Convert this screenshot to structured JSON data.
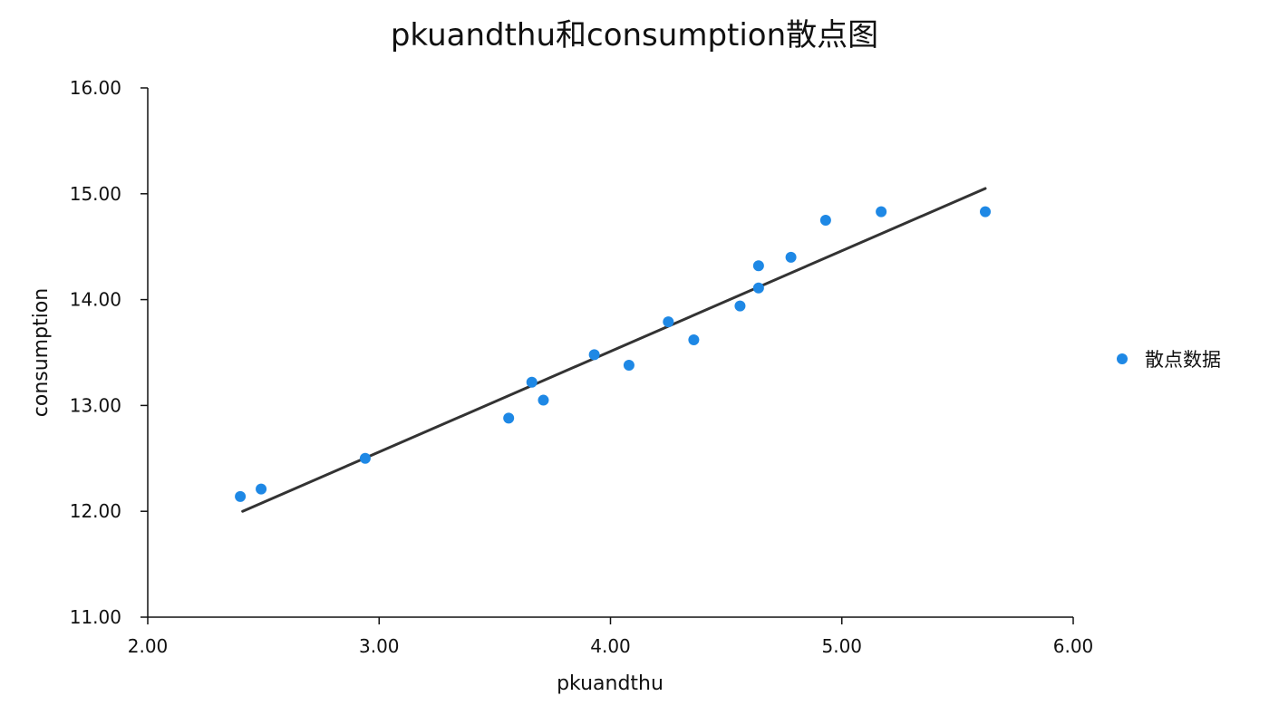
{
  "chart_data": {
    "type": "scatter",
    "title": "pkuandthu和consumption散点图",
    "xlabel": "pkuandthu",
    "ylabel": "consumption",
    "xlim": [
      2,
      6
    ],
    "ylim": [
      11,
      16
    ],
    "x_ticks": [
      "2.00",
      "3.00",
      "4.00",
      "5.00",
      "6.00"
    ],
    "y_ticks": [
      "11.00",
      "12.00",
      "13.00",
      "14.00",
      "15.00",
      "16.00"
    ],
    "grid": false,
    "legend_position": "right",
    "series": [
      {
        "name": "散点数据",
        "color": "#1e88e5",
        "points": [
          {
            "x": 2.4,
            "y": 12.14
          },
          {
            "x": 2.49,
            "y": 12.21
          },
          {
            "x": 2.94,
            "y": 12.5
          },
          {
            "x": 3.56,
            "y": 12.88
          },
          {
            "x": 3.66,
            "y": 13.22
          },
          {
            "x": 3.71,
            "y": 13.05
          },
          {
            "x": 3.93,
            "y": 13.48
          },
          {
            "x": 4.08,
            "y": 13.38
          },
          {
            "x": 4.25,
            "y": 13.79
          },
          {
            "x": 4.36,
            "y": 13.62
          },
          {
            "x": 4.56,
            "y": 13.94
          },
          {
            "x": 4.64,
            "y": 14.32
          },
          {
            "x": 4.64,
            "y": 14.11
          },
          {
            "x": 4.78,
            "y": 14.4
          },
          {
            "x": 4.93,
            "y": 14.75
          },
          {
            "x": 5.17,
            "y": 14.83
          },
          {
            "x": 5.62,
            "y": 14.83
          }
        ]
      }
    ],
    "trend_line": {
      "color": "#333333",
      "start": {
        "x": 2.41,
        "y": 12.0
      },
      "end": {
        "x": 5.62,
        "y": 15.05
      }
    }
  }
}
